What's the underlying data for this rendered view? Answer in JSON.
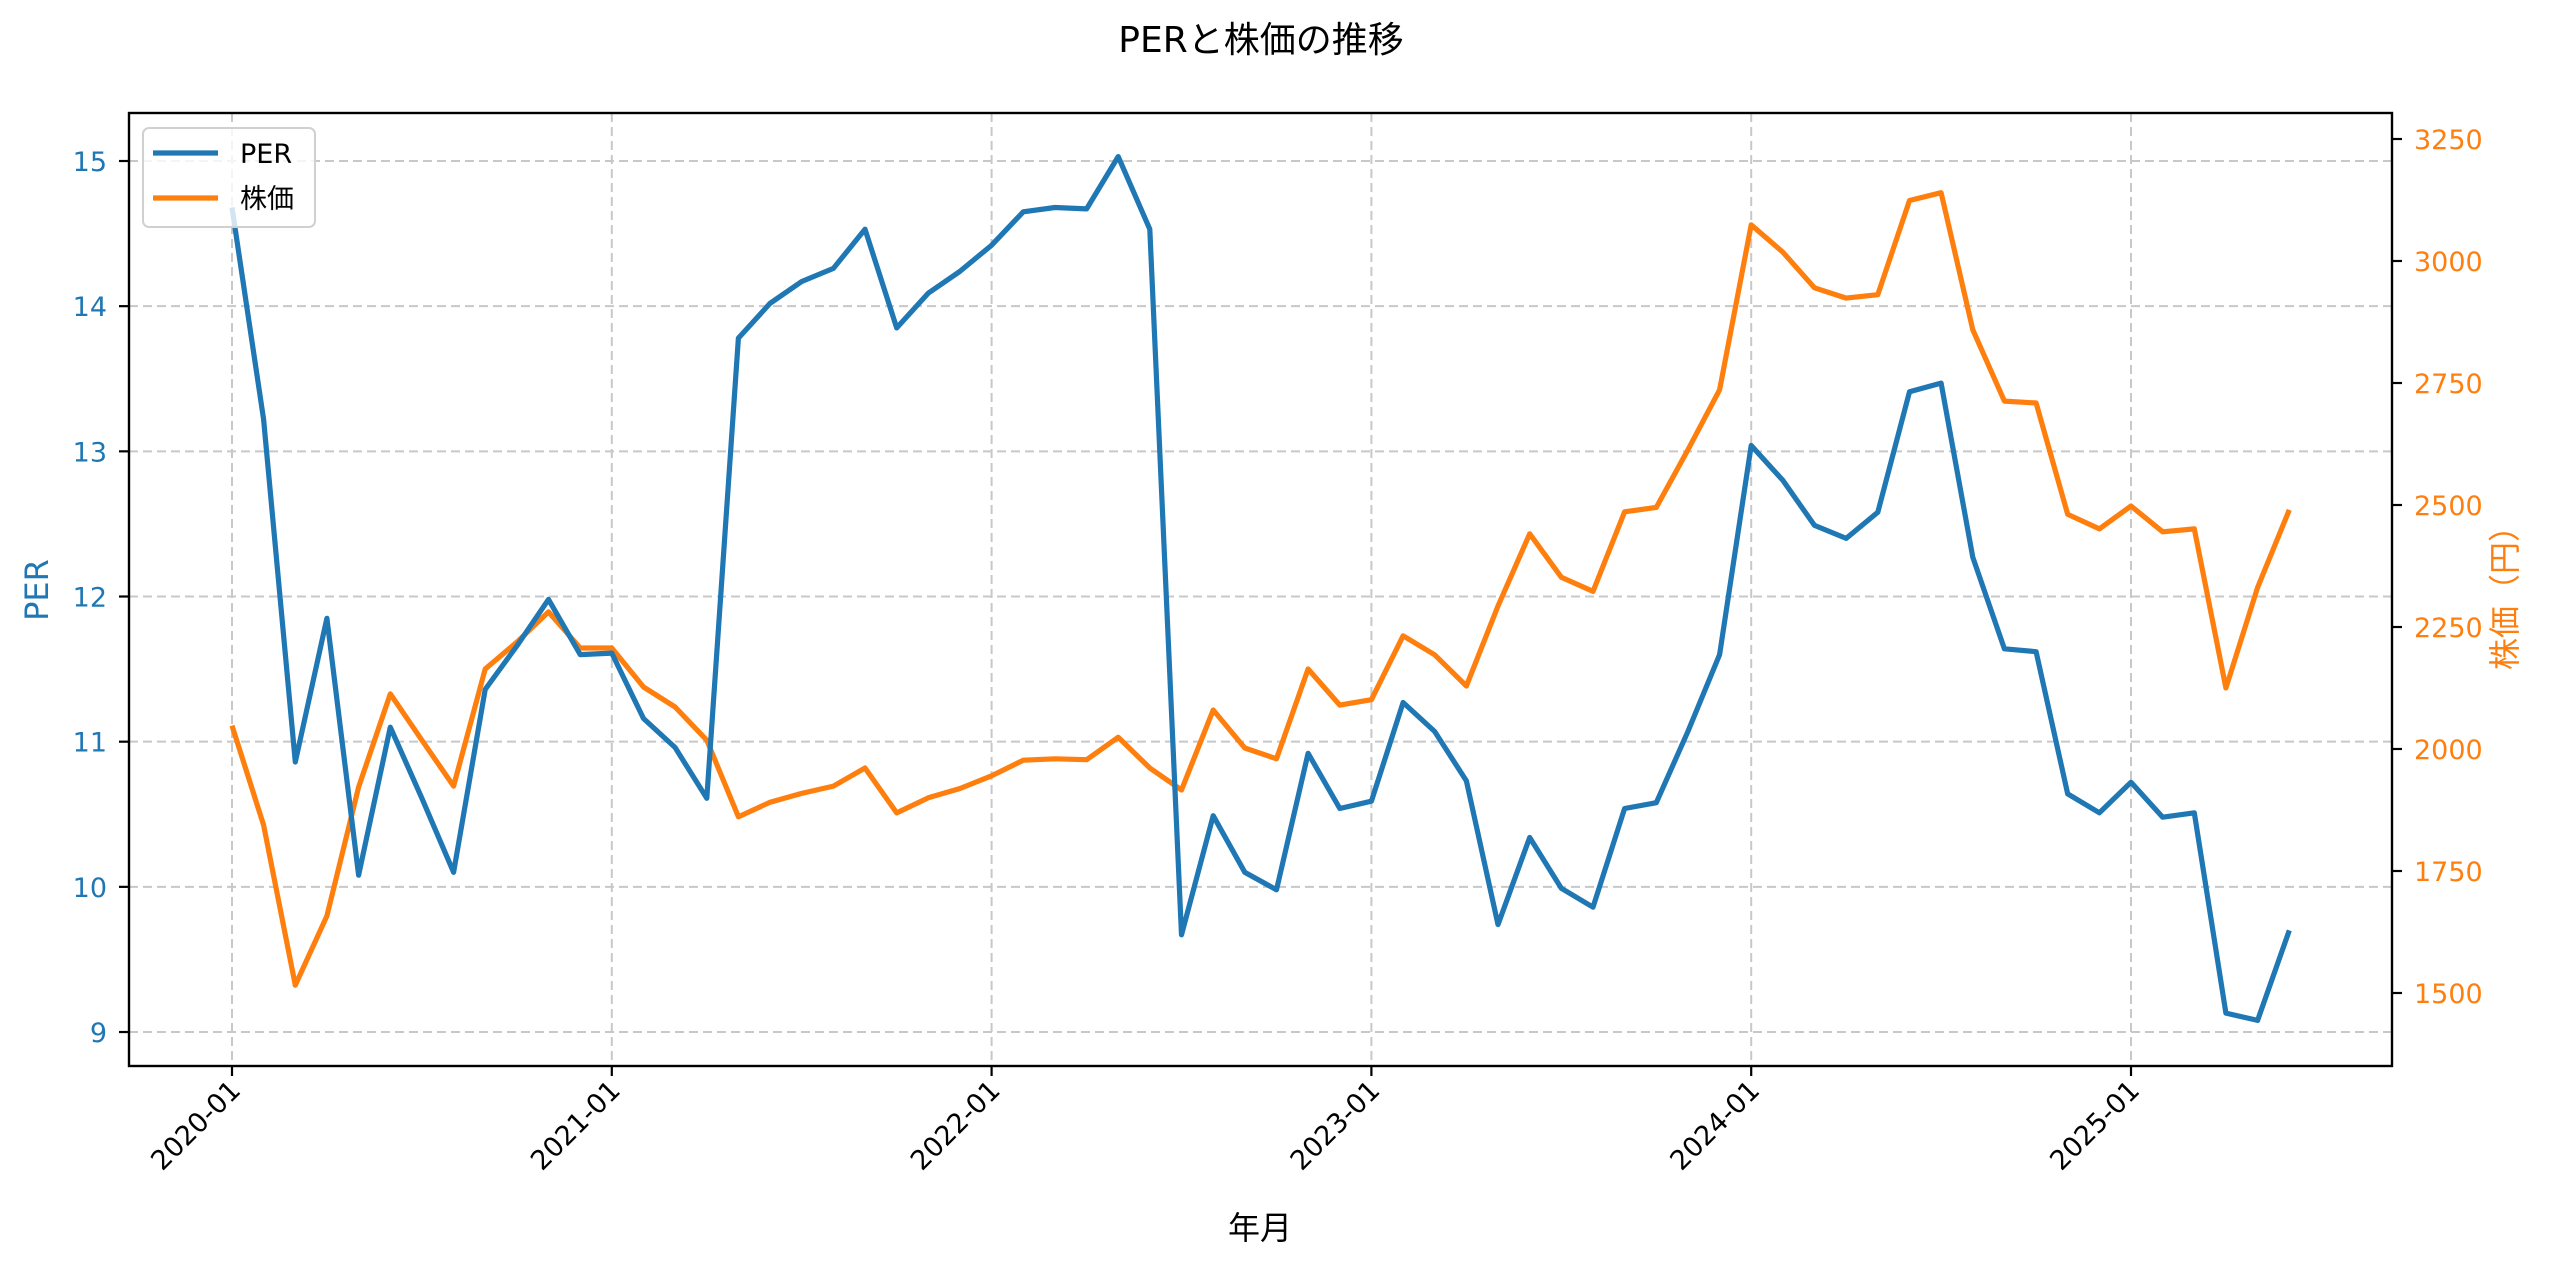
{
  "chart_data": {
    "type": "line",
    "title": "PERと株価の推移",
    "xlabel": "年月",
    "ylabel_left": "PER",
    "ylabel_right": "株価（円）",
    "x_tick_labels": [
      "2020-01",
      "2021-01",
      "2022-01",
      "2023-01",
      "2024-01",
      "2025-01"
    ],
    "y_left_ticks": [
      9,
      10,
      11,
      12,
      13,
      14,
      15
    ],
    "y_right_ticks": [
      1500,
      1750,
      2000,
      2250,
      2500,
      2750,
      3000,
      3250
    ],
    "ylim_left": [
      8.77,
      15.33
    ],
    "ylim_right": [
      1360,
      3300
    ],
    "grid": true,
    "legend_position": "upper left",
    "legend": [
      "PER",
      "株価"
    ],
    "colors": {
      "PER": "#1f77b4",
      "株価": "#ff7f0e"
    },
    "x": [
      "2020-01",
      "2020-02",
      "2020-03",
      "2020-04",
      "2020-05",
      "2020-06",
      "2020-07",
      "2020-08",
      "2020-09",
      "2020-10",
      "2020-11",
      "2020-12",
      "2021-01",
      "2021-02",
      "2021-03",
      "2021-04",
      "2021-05",
      "2021-06",
      "2021-07",
      "2021-08",
      "2021-09",
      "2021-10",
      "2021-11",
      "2021-12",
      "2022-01",
      "2022-02",
      "2022-03",
      "2022-04",
      "2022-05",
      "2022-06",
      "2022-07",
      "2022-08",
      "2022-09",
      "2022-10",
      "2022-11",
      "2022-12",
      "2023-01",
      "2023-02",
      "2023-03",
      "2023-04",
      "2023-05",
      "2023-06",
      "2023-07",
      "2023-08",
      "2023-09",
      "2023-10",
      "2023-11",
      "2023-12",
      "2024-01",
      "2024-02",
      "2024-03",
      "2024-04",
      "2024-05",
      "2024-06",
      "2024-07",
      "2024-08",
      "2024-09",
      "2024-10",
      "2024-11",
      "2024-12",
      "2025-01",
      "2025-02",
      "2025-03",
      "2025-04",
      "2025-05",
      "2025-06"
    ],
    "series": [
      {
        "name": "PER",
        "axis": "left",
        "values": [
          14.68,
          13.22,
          10.86,
          11.85,
          10.08,
          11.1,
          10.61,
          10.1,
          11.36,
          11.66,
          11.98,
          11.6,
          11.61,
          11.16,
          10.96,
          10.61,
          13.78,
          14.02,
          14.17,
          14.26,
          14.53,
          13.85,
          14.09,
          14.24,
          14.42,
          14.65,
          14.68,
          14.67,
          15.03,
          14.53,
          9.67,
          10.49,
          10.1,
          9.98,
          10.92,
          10.54,
          10.59,
          11.27,
          11.07,
          10.73,
          9.74,
          10.34,
          9.99,
          9.86,
          10.54,
          10.58,
          11.07,
          11.6,
          13.04,
          12.8,
          12.49,
          12.4,
          12.58,
          13.41,
          13.47,
          12.27,
          11.64,
          11.62,
          10.64,
          10.51,
          10.72,
          10.48,
          10.51,
          9.13,
          9.08,
          9.7
        ]
      },
      {
        "name": "株価",
        "axis": "right",
        "values": [
          2048,
          1844,
          1516,
          1658,
          1922,
          2113,
          2018,
          1924,
          2164,
          2219,
          2281,
          2207,
          2207,
          2127,
          2086,
          2018,
          1861,
          1891,
          1909,
          1924,
          1961,
          1869,
          1900,
          1919,
          1945,
          1977,
          1980,
          1978,
          2024,
          1961,
          1916,
          2080,
          2002,
          1980,
          2164,
          2090,
          2101,
          2232,
          2193,
          2129,
          2293,
          2441,
          2352,
          2323,
          2486,
          2495,
          2613,
          2736,
          3074,
          3018,
          2945,
          2924,
          2931,
          3124,
          3140,
          2859,
          2713,
          2709,
          2481,
          2451,
          2498,
          2445,
          2451,
          2125,
          2331,
          2490
        ]
      }
    ]
  }
}
